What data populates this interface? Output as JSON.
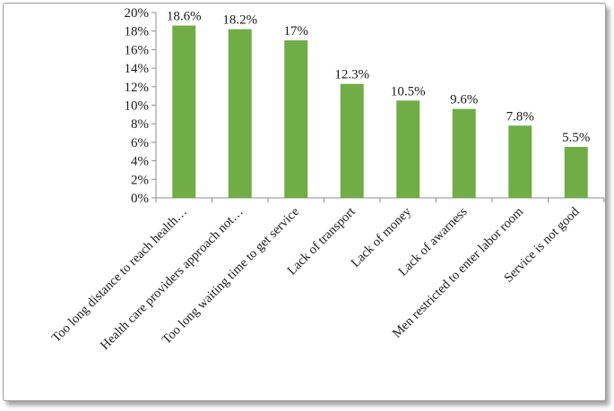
{
  "chart_data": {
    "type": "bar",
    "categories": [
      "Too long distance to reach health…",
      "Health care providers approach not…",
      "Too long waiting time to get service",
      "Lack of transport",
      "Lack of money",
      "Lack of awarness",
      "Men restricted to enter labor room",
      "Service is not good"
    ],
    "values": [
      18.6,
      18.2,
      17,
      12.3,
      10.5,
      9.6,
      7.8,
      5.5
    ],
    "data_labels": [
      "18.6%",
      "18.2%",
      "17%",
      "12.3%",
      "10.5%",
      "9.6%",
      "7.8%",
      "5.5%"
    ],
    "yticks": [
      "0%",
      "2%",
      "4%",
      "6%",
      "8%",
      "10%",
      "12%",
      "14%",
      "16%",
      "18%",
      "20%"
    ],
    "ylim": [
      0,
      20
    ],
    "title": "",
    "xlabel": "",
    "ylabel": "",
    "grid": false,
    "legend": "none",
    "bar_color": "#70ad47"
  }
}
